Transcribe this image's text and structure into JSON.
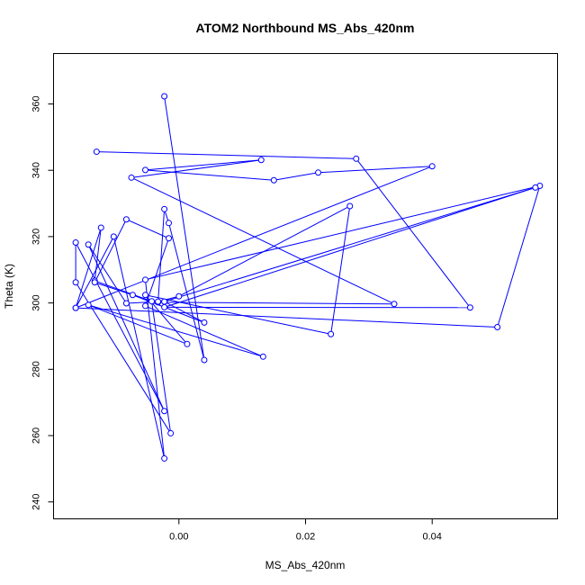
{
  "chart_data": {
    "type": "line",
    "title": "ATOM2 Northbound MS_Abs_420nm",
    "xlabel": "MS_Abs_420nm",
    "ylabel": "Theta (K)",
    "xlim": [
      -0.0198,
      0.0598
    ],
    "ylim": [
      234.9,
      375.2
    ],
    "x_ticks": [
      0.0,
      0.02,
      0.04
    ],
    "x_tick_labels": [
      "0.00",
      "0.02",
      "0.04"
    ],
    "y_ticks": [
      240,
      260,
      280,
      300,
      320,
      340,
      360
    ],
    "y_tick_labels": [
      "240",
      "260",
      "280",
      "300",
      "320",
      "340",
      "360"
    ],
    "grid": false,
    "series": [
      {
        "color": "#0000ff",
        "marker": "open-circle",
        "points": [
          {
            "x": -0.0023,
            "y": 362.3
          },
          {
            "x": 0.004,
            "y": 282.8
          },
          {
            "x": -0.0016,
            "y": 324.1
          },
          {
            "x": -0.0023,
            "y": 328.3
          },
          {
            "x": -0.0033,
            "y": 300.2
          },
          {
            "x": 0.034,
            "y": 299.7
          },
          {
            "x": -0.0075,
            "y": 337.8
          },
          {
            "x": 0.013,
            "y": 343.1
          },
          {
            "x": -0.0053,
            "y": 340.1
          },
          {
            "x": 0.015,
            "y": 337.0
          },
          {
            "x": 0.022,
            "y": 339.3
          },
          {
            "x": 0.04,
            "y": 341.2
          },
          {
            "x": -0.0163,
            "y": 298.5
          },
          {
            "x": -0.0103,
            "y": 320.0
          },
          {
            "x": -0.0023,
            "y": 253.1
          },
          {
            "x": -0.0053,
            "y": 307.0
          },
          {
            "x": 0.057,
            "y": 335.3
          },
          {
            "x": 0.0503,
            "y": 292.7
          },
          {
            "x": -0.0163,
            "y": 298.5
          },
          {
            "x": -0.0123,
            "y": 322.7
          },
          {
            "x": -0.0133,
            "y": 306.7
          },
          {
            "x": -0.0043,
            "y": 300.5
          },
          {
            "x": -0.0013,
            "y": 260.7
          },
          {
            "x": -0.0163,
            "y": 306.2
          },
          {
            "x": -0.0163,
            "y": 318.2
          },
          {
            "x": -0.0023,
            "y": 267.4
          },
          {
            "x": -0.0143,
            "y": 317.6
          },
          {
            "x": -0.0083,
            "y": 299.9
          },
          {
            "x": -0.0033,
            "y": 300.4
          },
          {
            "x": 0.0,
            "y": 302.0
          },
          {
            "x": 0.027,
            "y": 329.2
          },
          {
            "x": 0.024,
            "y": 290.6
          },
          {
            "x": -0.0053,
            "y": 302.4
          },
          {
            "x": 0.0013,
            "y": 287.6
          },
          {
            "x": -0.0143,
            "y": 299.4
          },
          {
            "x": 0.0133,
            "y": 283.8
          },
          {
            "x": -0.0053,
            "y": 299.1
          },
          {
            "x": -0.0016,
            "y": 319.5
          },
          {
            "x": -0.0083,
            "y": 325.2
          },
          {
            "x": -0.0133,
            "y": 306.2
          },
          {
            "x": -0.0073,
            "y": 302.4
          },
          {
            "x": 0.004,
            "y": 294.1
          },
          {
            "x": -0.0023,
            "y": 300.4
          },
          {
            "x": 0.0563,
            "y": 334.8
          },
          {
            "x": -0.0023,
            "y": 298.7
          },
          {
            "x": 0.046,
            "y": 298.6
          },
          {
            "x": 0.028,
            "y": 343.5
          },
          {
            "x": -0.013,
            "y": 345.6
          }
        ]
      }
    ]
  }
}
